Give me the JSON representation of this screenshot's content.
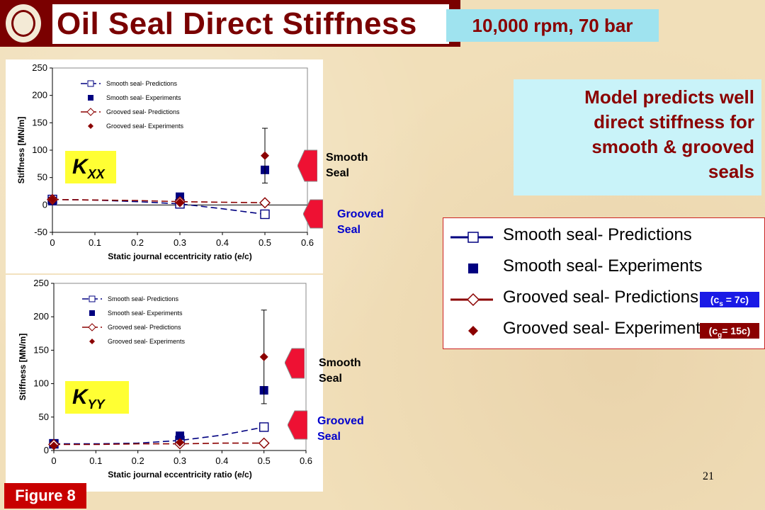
{
  "header": {
    "title": "Oil Seal Direct Stiffness",
    "conditions": "10,000 rpm, 70 bar"
  },
  "model_note": {
    "lines": [
      "Model predicts well",
      "direct stiffness for",
      "smooth & grooved",
      "seals"
    ]
  },
  "legend": {
    "items": [
      {
        "label": "Smooth seal- Predictions",
        "color": "#000080"
      },
      {
        "label": "Smooth seal- Experiments",
        "color": "#000080"
      },
      {
        "label": "Grooved seal- Predictions",
        "color": "#8b0000"
      },
      {
        "label": "Grooved seal- Experiments",
        "color": "#8b0000"
      }
    ],
    "clearance_smooth": {
      "prefix": "(c",
      "sub": "s",
      "suffix": " = 7c)",
      "color": "#1a1ae6"
    },
    "clearance_grooved": {
      "prefix": "(c",
      "sub": "g",
      "suffix": "= 15c)",
      "color": "#8b0000"
    }
  },
  "labels": {
    "kxx": {
      "main": "K",
      "sub": "XX"
    },
    "kyy": {
      "main": "K",
      "sub": "YY"
    },
    "smooth_seal": [
      "Smooth",
      "Seal"
    ],
    "grooved_seal": [
      "Grooved",
      "Seal"
    ]
  },
  "colors": {
    "smooth": "#000080",
    "grooved": "#8b0000",
    "arrow": "#ee1133",
    "side_smooth": "#000000",
    "side_grooved": "#0000cc"
  },
  "page_number": "21",
  "figure_tag": "Figure 8",
  "chart_data": [
    {
      "type": "scatter",
      "name": "KXX",
      "xlabel": "Static journal eccentricity ratio (e/c)",
      "ylabel": "Stiffness [MN/m]",
      "xlim": [
        0,
        0.6
      ],
      "ylim": [
        -50,
        250
      ],
      "xticks": [
        0,
        0.1,
        0.2,
        0.3,
        0.4,
        0.5,
        0.6
      ],
      "xtick_labels": [
        "0",
        "0.1",
        "0.2",
        "0.3",
        "0.4",
        "0.5",
        "0.6"
      ],
      "yticks": [
        -50,
        0,
        50,
        100,
        150,
        200,
        250
      ],
      "ytick_labels": [
        "-50",
        "0",
        "50",
        "100",
        "150",
        "200",
        "250"
      ],
      "grid": false,
      "legend_placement": "top-left",
      "series": [
        {
          "name": "Smooth seal- Predictions",
          "kind": "line-open-square",
          "color": "#000080",
          "x": [
            0,
            0.3,
            0.5
          ],
          "y": [
            10,
            2,
            -17
          ],
          "curve_x": [
            0,
            0.1,
            0.2,
            0.3,
            0.4,
            0.5
          ],
          "curve_y": [
            10,
            9,
            6,
            2,
            -7,
            -17
          ]
        },
        {
          "name": "Smooth seal- Experiments",
          "kind": "filled-square",
          "color": "#000080",
          "x": [
            0,
            0.3,
            0.5
          ],
          "y": [
            7,
            15,
            64
          ]
        },
        {
          "name": "Grooved seal- Predictions",
          "kind": "line-open-diamond",
          "color": "#8b0000",
          "x": [
            0,
            0.3,
            0.5
          ],
          "y": [
            10,
            6,
            4
          ],
          "curve_x": [
            0,
            0.1,
            0.2,
            0.3,
            0.4,
            0.5
          ],
          "curve_y": [
            10,
            9,
            8,
            6,
            5,
            4
          ]
        },
        {
          "name": "Grooved seal- Experiments",
          "kind": "filled-diamond",
          "color": "#8b0000",
          "x": [
            0,
            0.3,
            0.5
          ],
          "y": [
            10,
            5,
            90
          ],
          "error": [
            [
              0.5,
              40,
              140
            ]
          ]
        }
      ]
    },
    {
      "type": "scatter",
      "name": "KYY",
      "xlabel": "Static journal eccentricity ratio (e/c)",
      "ylabel": "Stiffness [MN/m]",
      "xlim": [
        0,
        0.6
      ],
      "ylim": [
        0,
        250
      ],
      "xticks": [
        0,
        0.1,
        0.2,
        0.3,
        0.4,
        0.5,
        0.6
      ],
      "xtick_labels": [
        "0",
        "0.1",
        "0.2",
        "0.3",
        "0.4",
        "0.5",
        "0.6"
      ],
      "yticks": [
        0,
        50,
        100,
        150,
        200,
        250
      ],
      "ytick_labels": [
        "0",
        "50",
        "100",
        "150",
        "200",
        "250"
      ],
      "grid": false,
      "legend_placement": "top-left",
      "series": [
        {
          "name": "Smooth seal- Predictions",
          "kind": "line-open-square",
          "color": "#000080",
          "x": [
            0,
            0.3,
            0.5
          ],
          "y": [
            10,
            15,
            35
          ],
          "curve_x": [
            0,
            0.1,
            0.2,
            0.3,
            0.4,
            0.5
          ],
          "curve_y": [
            10,
            10,
            11,
            15,
            23,
            35
          ]
        },
        {
          "name": "Smooth seal- Experiments",
          "kind": "filled-square",
          "color": "#000080",
          "x": [
            0,
            0.3,
            0.5
          ],
          "y": [
            10,
            22,
            90
          ]
        },
        {
          "name": "Grooved seal- Predictions",
          "kind": "line-open-diamond",
          "color": "#8b0000",
          "x": [
            0,
            0.3,
            0.5
          ],
          "y": [
            9,
            10,
            11
          ],
          "curve_x": [
            0,
            0.1,
            0.2,
            0.3,
            0.4,
            0.5
          ],
          "curve_y": [
            9,
            9,
            10,
            10,
            11,
            11
          ]
        },
        {
          "name": "Grooved seal- Experiments",
          "kind": "filled-diamond",
          "color": "#8b0000",
          "x": [
            0,
            0.3,
            0.5
          ],
          "y": [
            7,
            12,
            140
          ],
          "error": [
            [
              0.5,
              70,
              210
            ]
          ]
        }
      ]
    }
  ]
}
